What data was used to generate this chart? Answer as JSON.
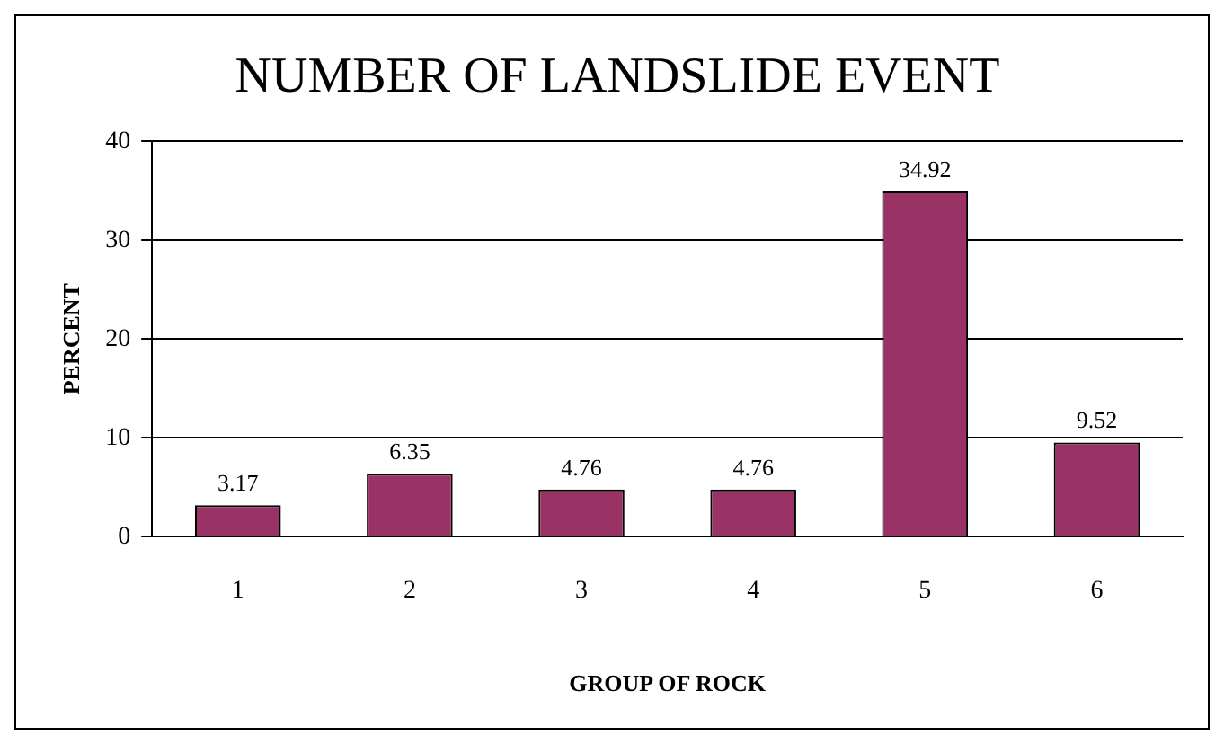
{
  "chart_data": {
    "type": "bar",
    "title": "NUMBER OF LANDSLIDE EVENT",
    "xlabel": "GROUP OF ROCK",
    "ylabel": "PERCENT",
    "categories": [
      "1",
      "2",
      "3",
      "4",
      "5",
      "6"
    ],
    "values": [
      3.17,
      6.35,
      4.76,
      4.76,
      34.92,
      9.52
    ],
    "color": "#993366",
    "ylim": [
      0,
      40
    ],
    "yticks": [
      0,
      10,
      20,
      30,
      40
    ],
    "grid": "y",
    "legend": false,
    "data_labels": true
  }
}
